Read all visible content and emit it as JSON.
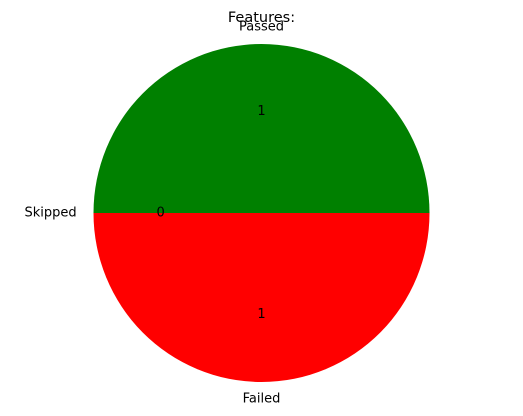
{
  "chart_data": {
    "type": "pie",
    "title": "Features:",
    "slices": [
      {
        "label": "Passed",
        "value": 1,
        "color": "#008000"
      },
      {
        "label": "Skipped",
        "value": 0,
        "color": "#0000ff"
      },
      {
        "label": "Failed",
        "value": 1,
        "color": "#ff0000"
      }
    ]
  }
}
